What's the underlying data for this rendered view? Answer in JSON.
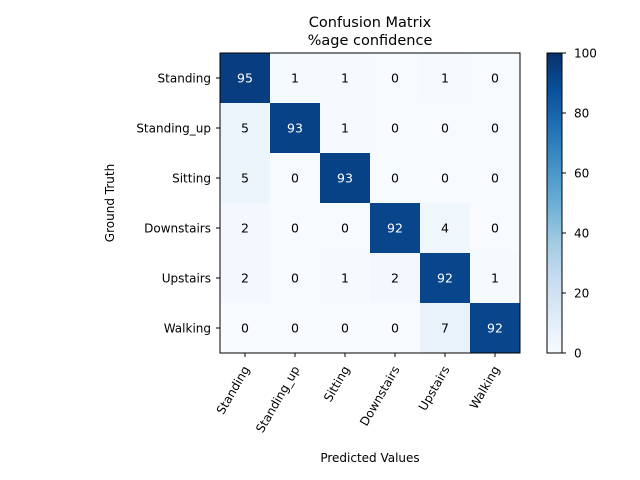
{
  "chart_data": {
    "type": "heatmap",
    "title": "Confusion Matrix",
    "subtitle": "%age confidence",
    "xlabel": "Predicted Values",
    "ylabel": "Ground Truth",
    "x_categories": [
      "Standing",
      "Standing_up",
      "Sitting",
      "Downstairs",
      "Upstairs",
      "Walking"
    ],
    "y_categories": [
      "Standing",
      "Standing_up",
      "Sitting",
      "Downstairs",
      "Upstairs",
      "Walking"
    ],
    "values": [
      [
        95,
        1,
        1,
        0,
        1,
        0
      ],
      [
        5,
        93,
        1,
        0,
        0,
        0
      ],
      [
        5,
        0,
        93,
        0,
        0,
        0
      ],
      [
        2,
        0,
        0,
        92,
        4,
        0
      ],
      [
        2,
        0,
        1,
        2,
        92,
        1
      ],
      [
        0,
        0,
        0,
        0,
        7,
        92
      ]
    ],
    "colorbar": {
      "min": 0,
      "max": 100,
      "ticks": [
        "0",
        "20",
        "40",
        "60",
        "80",
        "100"
      ],
      "colormap": "Blues"
    }
  }
}
